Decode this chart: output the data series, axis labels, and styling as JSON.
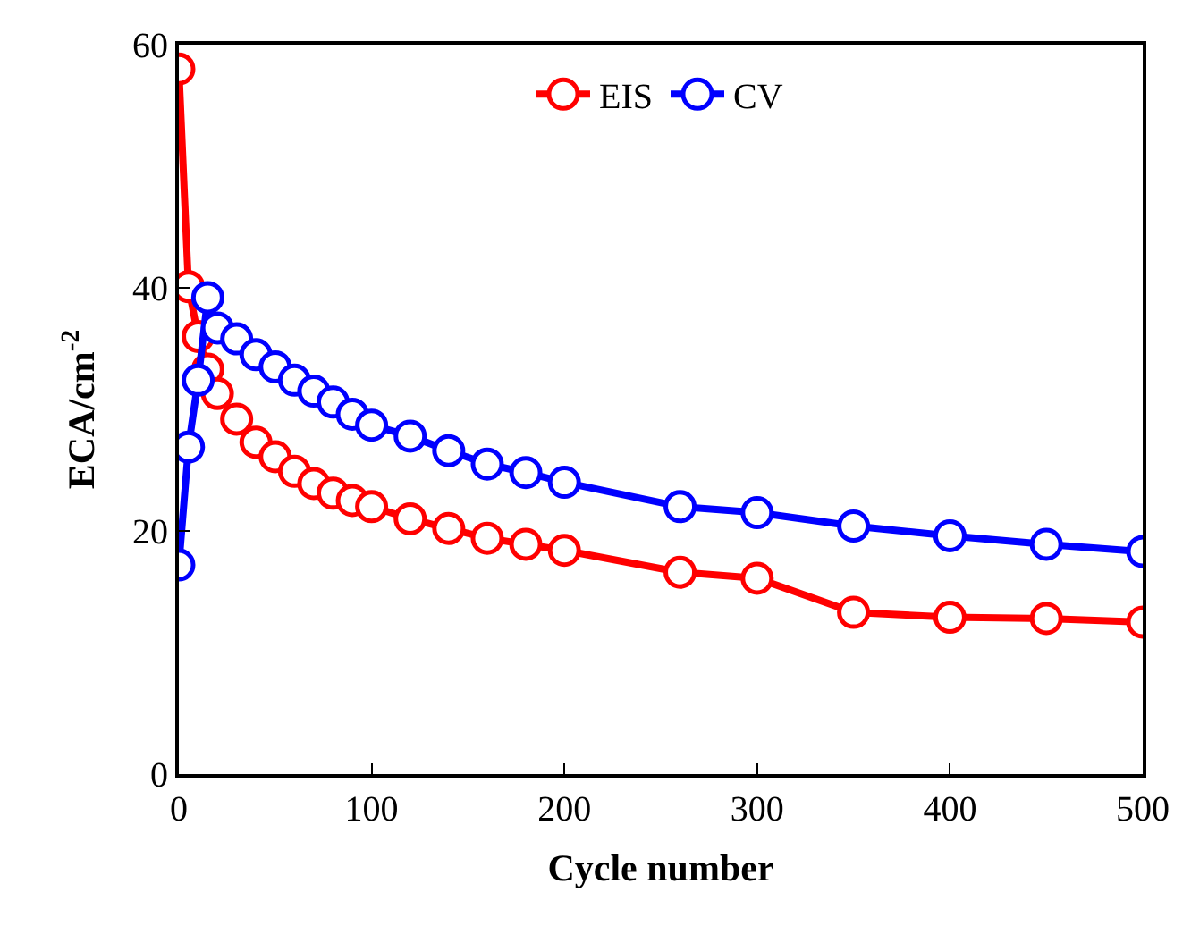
{
  "chart_data": {
    "type": "line",
    "xlabel": "Cycle number",
    "ylabel": "ECA/cm$^{-2}$",
    "xlim": [
      0,
      500
    ],
    "xticks": [
      0,
      100,
      200,
      300,
      400,
      500
    ],
    "ylim": [
      0,
      60
    ],
    "yticks": [
      0,
      20,
      40,
      60
    ],
    "legend": "top",
    "marker": "circle",
    "line_style": "solid",
    "x": [
      0,
      5,
      10,
      15,
      20,
      30,
      40,
      50,
      60,
      70,
      80,
      90,
      100,
      120,
      140,
      160,
      180,
      200,
      260,
      300,
      350,
      400,
      450,
      500
    ],
    "series": [
      {
        "name": "EIS",
        "color": "#ff0000",
        "values": [
          58,
          40.1,
          36.0,
          33.3,
          31.3,
          29.2,
          27.3,
          26.1,
          24.9,
          23.9,
          23.1,
          22.5,
          22.0,
          21.0,
          20.2,
          19.4,
          18.9,
          18.4,
          16.6,
          16.1,
          13.3,
          12.9,
          12.8,
          12.5
        ]
      },
      {
        "name": "CV",
        "color": "#0000ff",
        "values": [
          17.2,
          26.9,
          32.4,
          39.2,
          36.7,
          35.8,
          34.5,
          33.5,
          32.4,
          31.5,
          30.6,
          29.6,
          28.7,
          27.8,
          26.6,
          25.5,
          24.8,
          24.0,
          22.0,
          21.5,
          20.4,
          19.6,
          18.9,
          18.3
        ]
      }
    ]
  }
}
